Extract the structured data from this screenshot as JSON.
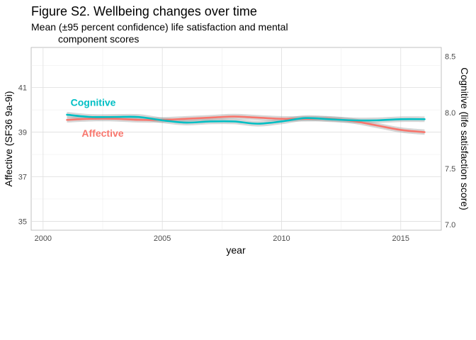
{
  "chart_data": {
    "type": "line",
    "title": "Figure S2. Wellbeing changes over time",
    "subtitle_line1": "Mean (±95 percent confidence) life satisfaction and mental",
    "subtitle_line2": "component scores",
    "xlabel": "year",
    "ylabel_left": "Affective (SF36 9a-9i)",
    "ylabel_right": "Cognitive (life satisfaction score)",
    "xlim": [
      1999.5,
      2016.7
    ],
    "x_ticks": [
      2000,
      2005,
      2010,
      2015
    ],
    "x_tick_labels": [
      "2000",
      "2005",
      "2010",
      "2015"
    ],
    "ylim_left": [
      34.6,
      42.8
    ],
    "y_ticks_left": [
      35,
      37,
      39,
      41
    ],
    "y_tick_labels_left": [
      "35",
      "37",
      "39",
      "41"
    ],
    "ylim_right": [
      6.95,
      8.58
    ],
    "y_ticks_right": [
      7.0,
      7.5,
      8.0,
      8.5
    ],
    "y_tick_labels_right": [
      "7.0",
      "7.5",
      "8.0",
      "8.5"
    ],
    "grid": true,
    "legend": "none",
    "series": [
      {
        "name": "Affective",
        "axis": "left",
        "color": "#F8766D",
        "label_pos": {
          "x": 2002.5,
          "y": 38.95
        },
        "x": [
          2001,
          2002,
          2003,
          2004,
          2005,
          2006,
          2007,
          2008,
          2009,
          2010,
          2011,
          2012,
          2013,
          2014,
          2015,
          2016
        ],
        "y": [
          39.55,
          39.6,
          39.6,
          39.55,
          39.55,
          39.6,
          39.65,
          39.7,
          39.65,
          39.6,
          39.6,
          39.6,
          39.5,
          39.3,
          39.1,
          39.0
        ],
        "ci_halfwidth": 0.12
      },
      {
        "name": "Cognitive",
        "axis": "right",
        "color": "#00BFC4",
        "label_pos": {
          "x": 2002.1,
          "y": 8.09
        },
        "x": [
          2001,
          2002,
          2003,
          2004,
          2005,
          2006,
          2007,
          2008,
          2009,
          2010,
          2011,
          2012,
          2013,
          2014,
          2015,
          2016
        ],
        "y": [
          7.98,
          7.96,
          7.96,
          7.96,
          7.93,
          7.91,
          7.92,
          7.92,
          7.9,
          7.92,
          7.95,
          7.94,
          7.93,
          7.93,
          7.94,
          7.94
        ],
        "ci_halfwidth": 0.025
      }
    ]
  }
}
